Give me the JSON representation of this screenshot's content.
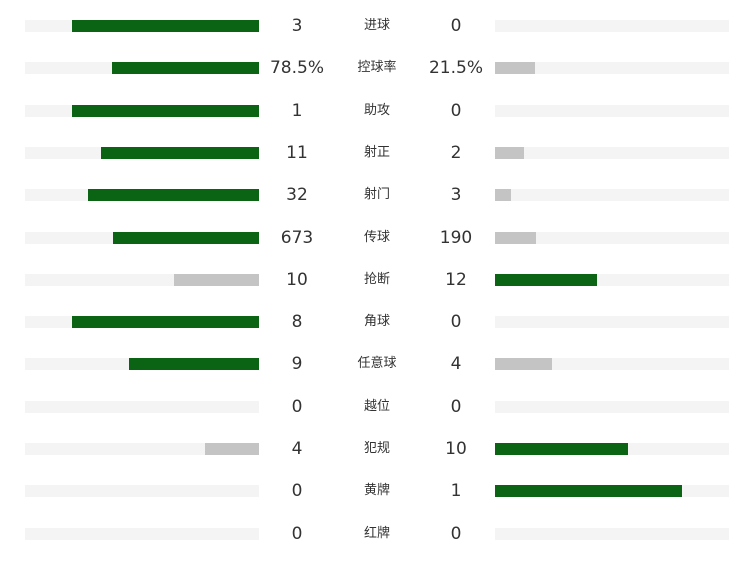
{
  "colors": {
    "leading": "#0a6414",
    "trailing": "#c4c4c4",
    "track": "#f4f4f4",
    "text": "#333333"
  },
  "stats": [
    {
      "label": "进球",
      "home": "3",
      "away": "0",
      "home_share": 0.8,
      "away_share": 0.0,
      "home_leads": true,
      "away_leads": false
    },
    {
      "label": "控球率",
      "home": "78.5%",
      "away": "21.5%",
      "home_share": 0.63,
      "away_share": 0.17,
      "home_leads": true,
      "away_leads": false
    },
    {
      "label": "助攻",
      "home": "1",
      "away": "0",
      "home_share": 0.8,
      "away_share": 0.0,
      "home_leads": true,
      "away_leads": false
    },
    {
      "label": "射正",
      "home": "11",
      "away": "2",
      "home_share": 0.675,
      "away_share": 0.125,
      "home_leads": true,
      "away_leads": false
    },
    {
      "label": "射门",
      "home": "32",
      "away": "3",
      "home_share": 0.73,
      "away_share": 0.07,
      "home_leads": true,
      "away_leads": false
    },
    {
      "label": "传球",
      "home": "673",
      "away": "190",
      "home_share": 0.625,
      "away_share": 0.175,
      "home_leads": true,
      "away_leads": false
    },
    {
      "label": "抢断",
      "home": "10",
      "away": "12",
      "home_share": 0.365,
      "away_share": 0.435,
      "home_leads": false,
      "away_leads": true
    },
    {
      "label": "角球",
      "home": "8",
      "away": "0",
      "home_share": 0.8,
      "away_share": 0.0,
      "home_leads": true,
      "away_leads": false
    },
    {
      "label": "任意球",
      "home": "9",
      "away": "4",
      "home_share": 0.555,
      "away_share": 0.245,
      "home_leads": true,
      "away_leads": false
    },
    {
      "label": "越位",
      "home": "0",
      "away": "0",
      "home_share": 0.0,
      "away_share": 0.0,
      "home_leads": false,
      "away_leads": false
    },
    {
      "label": "犯规",
      "home": "4",
      "away": "10",
      "home_share": 0.23,
      "away_share": 0.57,
      "home_leads": false,
      "away_leads": true
    },
    {
      "label": "黄牌",
      "home": "0",
      "away": "1",
      "home_share": 0.0,
      "away_share": 0.8,
      "home_leads": false,
      "away_leads": true
    },
    {
      "label": "红牌",
      "home": "0",
      "away": "0",
      "home_share": 0.0,
      "away_share": 0.0,
      "home_leads": false,
      "away_leads": false
    }
  ]
}
